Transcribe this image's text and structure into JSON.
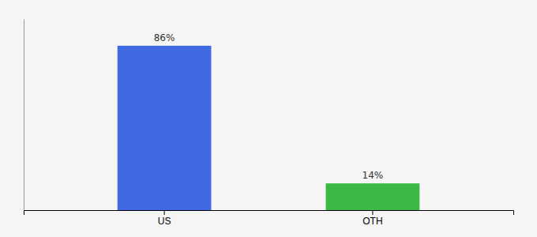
{
  "chart_data": {
    "type": "bar",
    "categories": [
      "US",
      "OTH"
    ],
    "values": [
      86,
      14
    ],
    "value_labels": [
      "86%",
      "14%"
    ],
    "colors": [
      "#4169e1",
      "#3cb944"
    ],
    "ylim": [
      0,
      100
    ],
    "data_labels": true,
    "tick_labels": "x"
  }
}
